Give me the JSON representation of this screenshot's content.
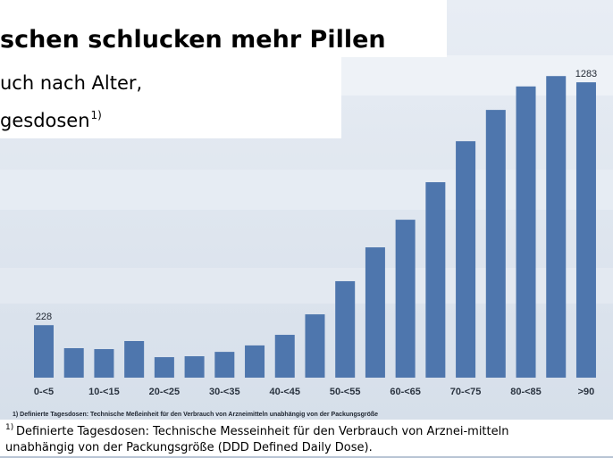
{
  "chart_data": {
    "type": "bar",
    "title": "schen schlucken mehr Pillen",
    "subtitle_lines": [
      "uch nach Alter,",
      "gesdosen"
    ],
    "subtitle_footnote_marker": "1)",
    "categories": [
      "0-<5",
      null,
      "10-<15",
      null,
      "20-<25",
      null,
      "30-<35",
      null,
      "40-<45",
      null,
      "50-<55",
      null,
      "60-<65",
      null,
      "70-<75",
      null,
      "80-<85",
      null,
      ">90"
    ],
    "values": [
      228,
      128,
      124,
      159,
      89,
      93,
      112,
      140,
      186,
      275,
      419,
      566,
      686,
      849,
      1027,
      1163,
      1265,
      1310,
      1283
    ],
    "value_labels": [
      "228",
      null,
      null,
      null,
      null,
      null,
      null,
      null,
      null,
      null,
      null,
      null,
      null,
      null,
      null,
      null,
      null,
      null,
      "1283"
    ],
    "color": "#4e76ad",
    "ylim": [
      0,
      1400
    ],
    "source_footnote": "1) Definierte Tagesdosen: Technische Meßeinheit für den Verbrauch von Arzneimitteln unabhängig von der Packungsgröße",
    "footnote_marker": "1)",
    "footnote_lines": [
      "Definierte Tagesdosen: Technische Messeinheit für den Verbrauch von Arznei-mitteln",
      "unabhängig von der Packungsgröße (DDD Defined Daily Dose)."
    ]
  }
}
